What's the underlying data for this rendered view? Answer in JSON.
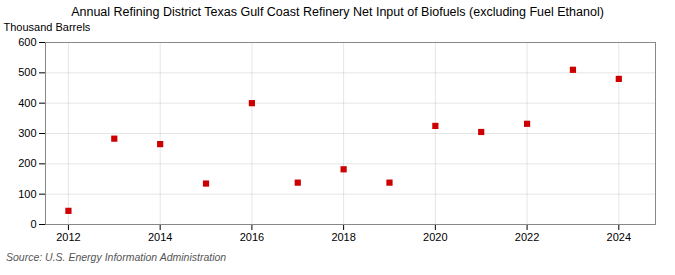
{
  "chart_data": {
    "type": "scatter",
    "title": "Annual Refining District Texas Gulf Coast Refinery Net Input of Biofuels (excluding Fuel Ethanol)",
    "ylabel": "Thousand Barrels",
    "source": "Source: U.S. Energy Information Administration",
    "x": [
      2012,
      2013,
      2014,
      2015,
      2016,
      2017,
      2018,
      2019,
      2020,
      2021,
      2022,
      2023,
      2024
    ],
    "values": [
      45,
      283,
      265,
      135,
      400,
      138,
      182,
      138,
      325,
      305,
      332,
      510,
      480
    ],
    "color": "#cc0000",
    "marker": "square",
    "xlim": [
      2011.5,
      2024.8
    ],
    "xticks": [
      2012,
      2014,
      2016,
      2018,
      2020,
      2022,
      2024
    ],
    "ylim": [
      0,
      600
    ],
    "yticks": [
      0,
      100,
      200,
      300,
      400,
      500,
      600
    ],
    "grid": true
  }
}
